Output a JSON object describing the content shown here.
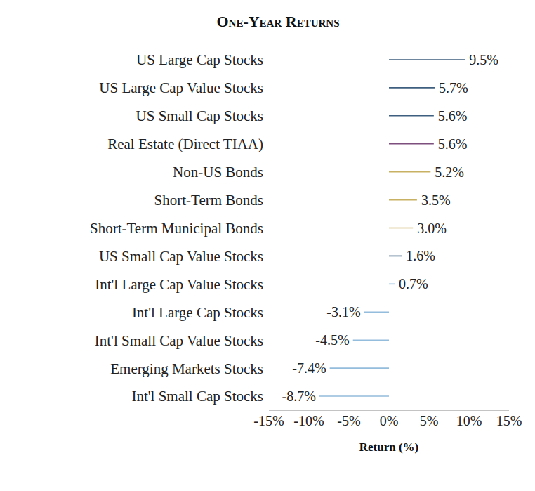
{
  "chart_data": {
    "type": "bar",
    "title": "One-Year Returns",
    "x_label": "Return (%)",
    "orientation": "horizontal",
    "categories": [
      "US Large Cap Stocks",
      "US Large Cap Value Stocks",
      "US Small Cap Stocks",
      "Real Estate (Direct TIAA)",
      "Non-US Bonds",
      "Short-Term Bonds",
      "Short-Term Municipal Bonds",
      "US Small Cap Value Stocks",
      "Int'l Large Cap Value Stocks",
      "Int'l Large Cap Stocks",
      "Int'l Small Cap Value Stocks",
      "Emerging Markets Stocks",
      "Int'l Small Cap Stocks"
    ],
    "values": [
      9.5,
      5.7,
      5.6,
      5.6,
      5.2,
      3.5,
      3.0,
      1.6,
      0.7,
      -3.1,
      -4.5,
      -7.4,
      -8.7
    ],
    "value_labels": [
      "9.5%",
      "5.7%",
      "5.6%",
      "5.6%",
      "5.2%",
      "3.5%",
      "3.0%",
      "1.6%",
      "0.7%",
      "-3.1%",
      "-4.5%",
      "-7.4%",
      "-8.7%"
    ],
    "colors": [
      "#3e5f7f",
      "#3e5f7f",
      "#3e5f7f",
      "#7d4f7f",
      "#c8b163",
      "#c8b163",
      "#c8b163",
      "#3e5f7f",
      "#93bcdd",
      "#93bcdd",
      "#93bcdd",
      "#93bcdd",
      "#93bcdd"
    ],
    "xlim": [
      -15,
      15
    ],
    "xticks": [
      {
        "value": -15,
        "label": "-15%"
      },
      {
        "value": -10,
        "label": "-10%"
      },
      {
        "value": -5,
        "label": "-5%"
      },
      {
        "value": 0,
        "label": "0%"
      },
      {
        "value": 5,
        "label": "5%"
      },
      {
        "value": 10,
        "label": "10%"
      },
      {
        "value": 15,
        "label": "15%"
      }
    ],
    "grid": false,
    "data_labels": true
  }
}
